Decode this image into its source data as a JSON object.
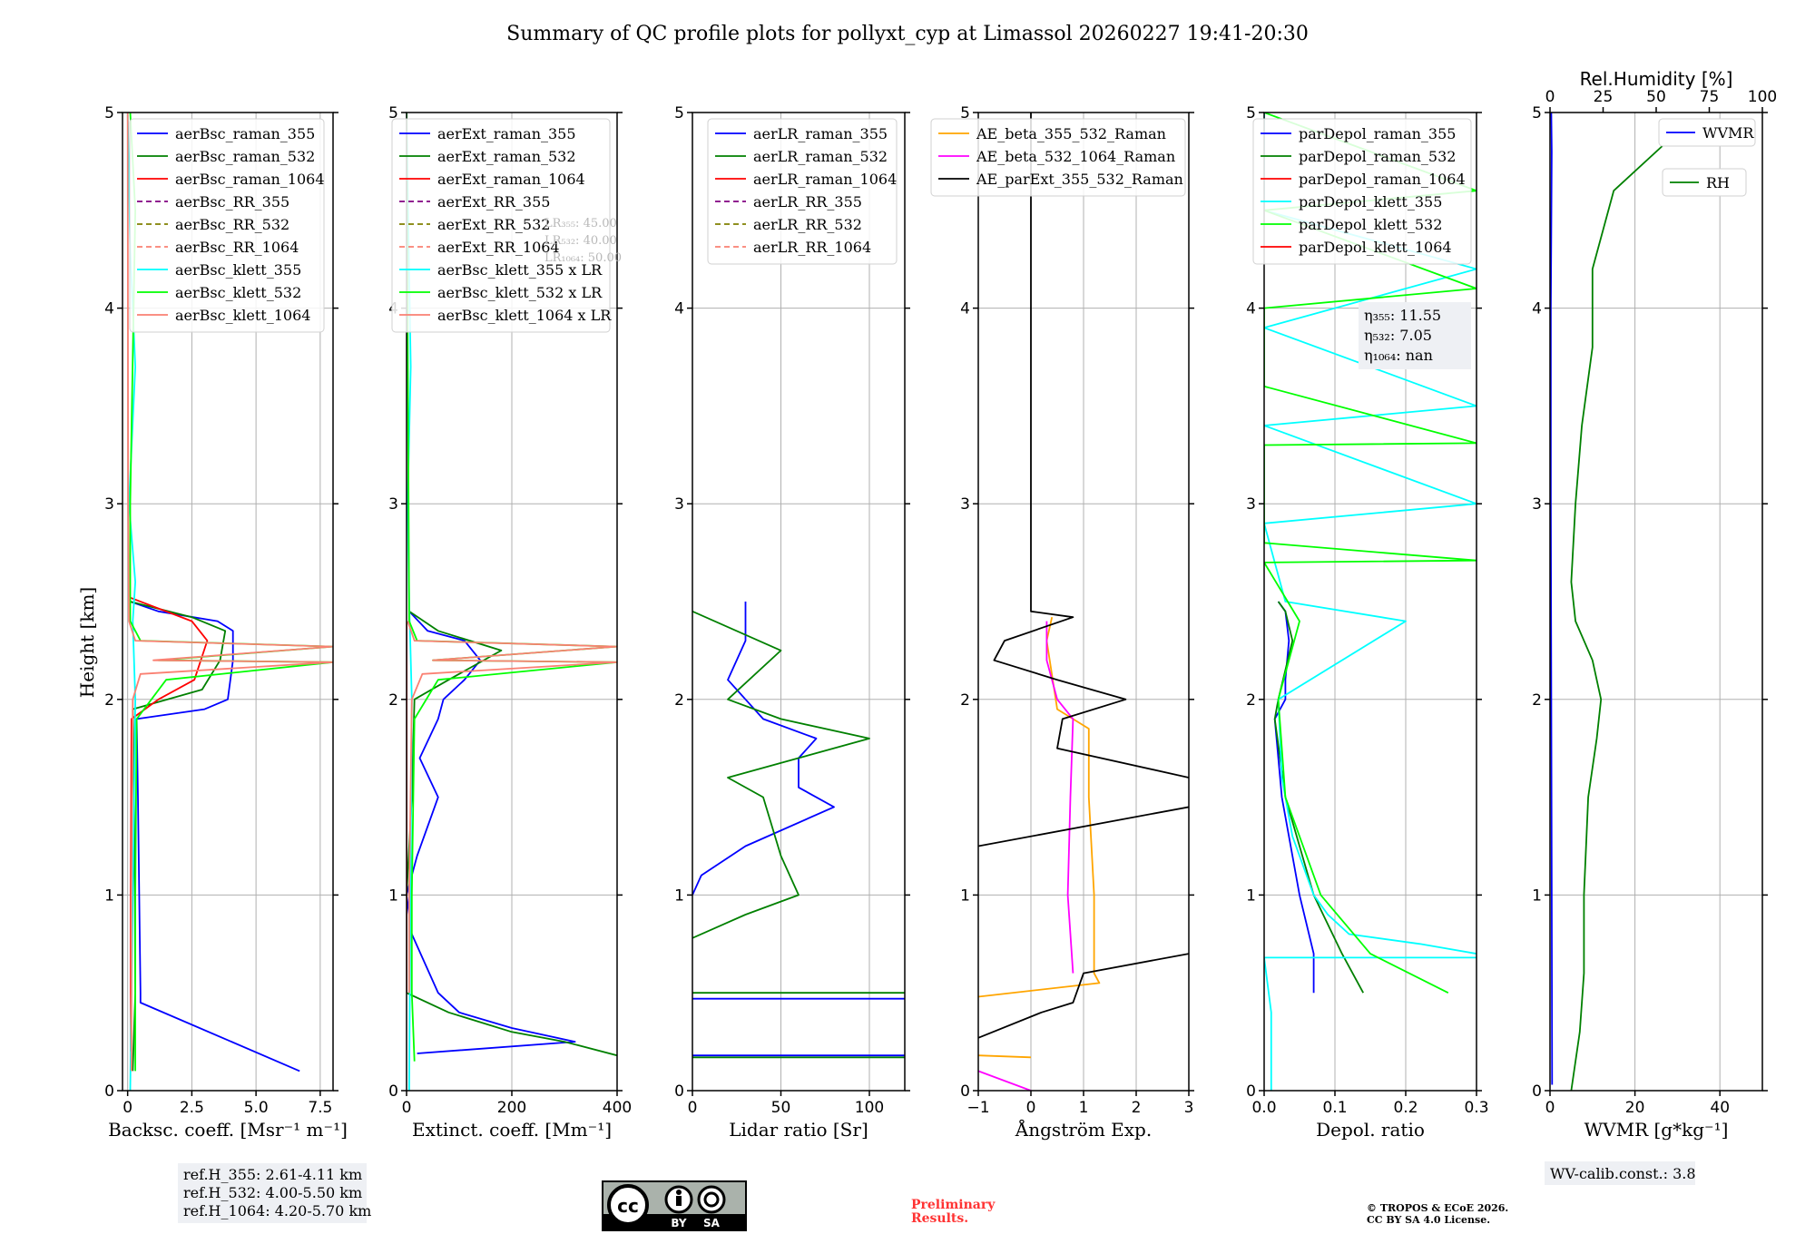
{
  "title": "Summary of QC profile plots for pollyxt_cyp at Limassol 20260227 19:41-20:30",
  "ylabel": "Height [km]",
  "ylim": [
    0,
    5
  ],
  "yticks": [
    0,
    1,
    2,
    3,
    4,
    5
  ],
  "chart_data": [
    {
      "type": "line",
      "id": "bsc",
      "xlabel": "Backsc. coeff. [Msr⁻¹ m⁻¹]",
      "xlim": [
        -0.2,
        8.0
      ],
      "xticks": [
        0,
        2.5,
        5.0,
        7.5
      ],
      "xticklabels": [
        "0",
        "2.5",
        "5.0",
        "7.5"
      ],
      "legend": [
        "aerBsc_raman_355",
        "aerBsc_raman_532",
        "aerBsc_raman_1064",
        "aerBsc_RR_355",
        "aerBsc_RR_532",
        "aerBsc_RR_1064",
        "aerBsc_klett_355",
        "aerBsc_klett_532",
        "aerBsc_klett_1064"
      ],
      "series": [
        {
          "name": "aerBsc_raman_355",
          "color": "#0000ff",
          "h": [
            0.1,
            0.45,
            0.5,
            1.0,
            1.5,
            1.9,
            1.95,
            2.0,
            2.2,
            2.35,
            2.4,
            2.45,
            2.5
          ],
          "v": [
            6.7,
            0.5,
            0.5,
            0.45,
            0.4,
            0.35,
            3.0,
            3.9,
            4.1,
            4.1,
            3.5,
            1.2,
            0.1
          ]
        },
        {
          "name": "aerBsc_raman_532",
          "color": "#008000",
          "h": [
            0.1,
            0.5,
            1.0,
            1.5,
            1.95,
            2.05,
            2.2,
            2.35,
            2.42,
            2.5
          ],
          "v": [
            0.2,
            0.3,
            0.28,
            0.25,
            0.2,
            2.9,
            3.6,
            3.8,
            2.5,
            0.1
          ]
        },
        {
          "name": "aerBsc_raman_1064",
          "color": "#ff0000",
          "h": [
            0.2,
            1.0,
            1.9,
            2.0,
            2.1,
            2.3,
            2.4,
            2.52
          ],
          "v": [
            0.12,
            0.12,
            0.15,
            1.2,
            2.6,
            3.1,
            2.5,
            0.1
          ]
        },
        {
          "name": "aerBsc_klett_355",
          "color": "#00ffff",
          "h": [
            0.0,
            1.0,
            2.0,
            2.4,
            2.6,
            3.0,
            3.7,
            4.3,
            5.0
          ],
          "v": [
            0.1,
            0.2,
            0.3,
            0.2,
            0.3,
            0.05,
            0.3,
            0.1,
            0.0
          ]
        },
        {
          "name": "aerBsc_klett_532",
          "color": "#00ff00",
          "h": [
            0.1,
            1.0,
            1.9,
            2.1,
            2.19,
            2.2,
            2.27,
            2.3,
            2.4,
            3.0,
            4.5,
            5.0
          ],
          "v": [
            0.3,
            0.3,
            0.35,
            1.5,
            8.0,
            1.2,
            8.0,
            0.5,
            0.1,
            0.1,
            0.3,
            0.1
          ]
        },
        {
          "name": "aerBsc_klett_1064",
          "color": "#fa8072",
          "h": [
            0.1,
            1.0,
            2.0,
            2.13,
            2.19,
            2.2,
            2.27,
            2.3,
            2.4,
            3.0,
            5.0
          ],
          "v": [
            0.15,
            0.15,
            0.2,
            0.5,
            8.0,
            1.0,
            8.0,
            0.3,
            0.05,
            0.02,
            0.0
          ]
        }
      ]
    },
    {
      "type": "line",
      "id": "ext",
      "xlabel": "Extinct. coeff. [Mm⁻¹]",
      "xlim": [
        0,
        400
      ],
      "xticks": [
        0,
        200,
        400
      ],
      "xticklabels": [
        "0",
        "200",
        "400"
      ],
      "legend": [
        "aerExt_raman_355",
        "aerExt_raman_532",
        "aerExt_raman_1064",
        "aerExt_RR_355",
        "aerExt_RR_532",
        "aerExt_RR_1064",
        "aerBsc_klett_355 x LR",
        "aerBsc_klett_532 x LR",
        "aerBsc_klett_1064 x LR"
      ],
      "lr_labels": [
        "LR₃₅₅: 45.00",
        "LR₅₃₂: 40.00",
        "LR₁₀₆₄: 50.00"
      ],
      "series": [
        {
          "name": "aerExt_raman_355",
          "color": "#0000ff",
          "h": [
            0.19,
            0.25,
            0.32,
            0.4,
            0.5,
            0.8,
            1.0,
            1.2,
            1.5,
            1.7,
            1.9,
            2.0,
            2.1,
            2.2,
            2.3,
            2.35,
            2.45
          ],
          "v": [
            20,
            320,
            200,
            100,
            60,
            10,
            0,
            20,
            60,
            25,
            60,
            70,
            110,
            140,
            110,
            40,
            5
          ]
        },
        {
          "name": "aerExt_raman_532",
          "color": "#008000",
          "h": [
            0.18,
            0.25,
            0.3,
            0.4,
            0.5,
            1.0,
            1.5,
            2.0,
            2.1,
            2.25,
            2.35,
            2.45
          ],
          "v": [
            400,
            300,
            200,
            80,
            0,
            0,
            10,
            15,
            80,
            180,
            60,
            5
          ]
        },
        {
          "name": "aerExt_raman_1064",
          "color": "#ff0000",
          "h": [
            0.5,
            1.0,
            2.0,
            2.4
          ],
          "v": [
            0,
            0,
            0,
            0
          ]
        },
        {
          "name": "aerBsc_klett_355 x LR",
          "color": "#00ffff",
          "h": [
            0.0,
            2.0,
            2.5,
            3.0,
            3.7,
            4.5,
            5.0
          ],
          "v": [
            5,
            10,
            5,
            2,
            8,
            3,
            0
          ]
        },
        {
          "name": "aerBsc_klett_532 x LR",
          "color": "#00ff00",
          "h": [
            0.15,
            0.5,
            1.0,
            1.9,
            2.1,
            2.19,
            2.2,
            2.27,
            2.3,
            2.4,
            5.0
          ],
          "v": [
            15,
            10,
            10,
            15,
            60,
            400,
            50,
            400,
            20,
            5,
            0
          ]
        },
        {
          "name": "aerBsc_klett_1064 x LR",
          "color": "#fa8072",
          "h": [
            0.5,
            1.0,
            2.0,
            2.13,
            2.19,
            2.2,
            2.27,
            2.3,
            2.4
          ],
          "v": [
            5,
            5,
            10,
            30,
            400,
            50,
            400,
            15,
            2
          ]
        }
      ]
    },
    {
      "type": "line",
      "id": "lr",
      "xlabel": "Lidar ratio [Sr]",
      "xlim": [
        0,
        120
      ],
      "xticks": [
        0,
        50,
        100
      ],
      "xticklabels": [
        "0",
        "50",
        "100"
      ],
      "legend": [
        "aerLR_raman_355",
        "aerLR_raman_532",
        "aerLR_raman_1064",
        "aerLR_RR_355",
        "aerLR_RR_532",
        "aerLR_RR_1064"
      ],
      "series": [
        {
          "name": "aerLR_raman_355",
          "color": "#0000ff",
          "h": [
            0.18,
            0.18,
            null,
            0.47,
            0.47,
            null,
            1.0,
            1.1,
            1.25,
            1.45,
            1.55,
            1.7,
            1.8,
            1.9,
            2.0,
            2.1,
            2.3,
            2.5
          ],
          "v": [
            0,
            120,
            null,
            0,
            120,
            null,
            0,
            5,
            30,
            80,
            60,
            60,
            70,
            40,
            30,
            20,
            30,
            30
          ]
        },
        {
          "name": "aerLR_raman_532",
          "color": "#008000",
          "h": [
            0.17,
            0.17,
            null,
            0.5,
            0.5,
            null,
            0.78,
            0.9,
            1.0,
            1.2,
            1.5,
            1.6,
            1.8,
            1.9,
            2.0,
            2.25,
            2.45
          ],
          "v": [
            0,
            120,
            null,
            0,
            120,
            null,
            0,
            30,
            60,
            50,
            40,
            20,
            100,
            50,
            20,
            50,
            0
          ]
        }
      ]
    },
    {
      "type": "line",
      "id": "ae",
      "xlabel": "Ångström Exp.",
      "xlim": [
        -1,
        3
      ],
      "xticks": [
        -1,
        0,
        1,
        2,
        3
      ],
      "xticklabels": [
        "−1",
        "0",
        "1",
        "2",
        "3"
      ],
      "legend": [
        "AE_beta_355_532_Raman",
        "AE_beta_532_1064_Raman",
        "AE_parExt_355_532_Raman"
      ],
      "series": [
        {
          "name": "AE_beta_355_532_Raman",
          "color": "#ffa500",
          "h": [
            0.48,
            0.55,
            0.6,
            1.0,
            1.5,
            1.85,
            1.95,
            2.3,
            2.42,
            null,
            0.17,
            0.18
          ],
          "v": [
            -1,
            1.3,
            1.2,
            1.2,
            1.1,
            1.1,
            0.5,
            0.3,
            0.4,
            null,
            0,
            -1
          ]
        },
        {
          "name": "AE_beta_532_1064_Raman",
          "color": "#ff00ff",
          "h": [
            0.0,
            0.1,
            null,
            0.6,
            1.0,
            1.5,
            1.9,
            2.0,
            2.2,
            2.4
          ],
          "v": [
            0,
            -1,
            null,
            0.8,
            0.7,
            0.75,
            0.8,
            0.5,
            0.3,
            0.3
          ],
          "break": true
        },
        {
          "name": "AE_parExt_355_532_Raman",
          "color": "#000000",
          "h": [
            0.27,
            0.4,
            0.45,
            0.6,
            0.7,
            null,
            1.25,
            1.45,
            null,
            1.6,
            1.75,
            1.9,
            2.0,
            2.1,
            2.2,
            2.3,
            2.42,
            2.45,
            5.0
          ],
          "v": [
            -1,
            0.2,
            0.8,
            1.0,
            3,
            null,
            -1,
            3,
            null,
            3,
            0.5,
            0.6,
            1.8,
            0.5,
            -0.7,
            -0.5,
            0.8,
            0,
            0
          ]
        }
      ]
    },
    {
      "type": "line",
      "id": "depol",
      "xlabel": "Depol. ratio",
      "xlim": [
        0,
        0.3
      ],
      "xticks": [
        0,
        0.1,
        0.2,
        0.3
      ],
      "xticklabels": [
        "0.0",
        "0.1",
        "0.2",
        "0.3"
      ],
      "legend": [
        "parDepol_raman_355",
        "parDepol_raman_532",
        "parDepol_raman_1064",
        "parDepol_klett_355",
        "parDepol_klett_532",
        "parDepol_klett_1064"
      ],
      "eta_labels": [
        "η₃₅₅: 11.55",
        "η₅₃₂: 7.05",
        "η₁₀₆₄: nan"
      ],
      "series": [
        {
          "name": "parDepol_raman_355",
          "color": "#0000ff",
          "h": [
            0.5,
            0.7,
            1.0,
            1.5,
            1.9,
            2.0,
            2.1,
            2.3,
            2.45,
            2.5
          ],
          "v": [
            0.07,
            0.07,
            0.05,
            0.025,
            0.015,
            0.03,
            0.03,
            0.035,
            0.03,
            0.02
          ]
        },
        {
          "name": "parDepol_raman_532",
          "color": "#008000",
          "h": [
            0.5,
            0.7,
            1.0,
            1.5,
            1.9,
            2.0,
            2.3,
            2.45,
            2.5
          ],
          "v": [
            0.14,
            0.11,
            0.07,
            0.03,
            0.015,
            0.02,
            0.04,
            0.03,
            0.02
          ]
        },
        {
          "name": "parDepol_klett_355",
          "color": "#00ffff",
          "h": [
            0.0,
            0.4,
            0.68,
            0.68,
            null,
            0.7,
            0.75,
            0.8,
            0.9,
            1.0,
            1.3,
            1.6,
            2.0,
            2.4,
            2.5,
            2.9,
            3.0,
            3.4,
            3.5,
            3.9,
            4.2,
            4.5,
            5.0
          ],
          "v": [
            0.01,
            0.01,
            0.0,
            0.3,
            null,
            0.3,
            0.22,
            0.12,
            0.09,
            0.07,
            0.04,
            0.025,
            0.02,
            0.2,
            0.03,
            0.0,
            0.3,
            0.0,
            0.3,
            0.0,
            0.3,
            0.0,
            0.0
          ]
        },
        {
          "name": "parDepol_klett_532",
          "color": "#00ff00",
          "h": [
            0.5,
            0.7,
            1.0,
            1.5,
            2.0,
            2.4,
            2.7,
            2.71,
            2.8,
            3.0,
            3.3,
            3.31,
            3.6,
            4.0,
            4.1,
            4.5,
            4.6,
            5.0
          ],
          "v": [
            0.26,
            0.15,
            0.08,
            0.03,
            0.02,
            0.05,
            0.0,
            0.3,
            0.0,
            0.0,
            0.0,
            0.3,
            0.0,
            0.0,
            0.3,
            0.0,
            0.3,
            0.0
          ]
        }
      ]
    },
    {
      "type": "line",
      "id": "wv",
      "xlabel": "WVMR [g*kg⁻¹]",
      "xlim": [
        0,
        50
      ],
      "xticks": [
        0,
        20,
        40
      ],
      "xticklabels": [
        "0",
        "20",
        "40"
      ],
      "top_label": "Rel.Humidity [%]",
      "top_xlim": [
        0,
        100
      ],
      "top_xticks": [
        0,
        25,
        50,
        75,
        100
      ],
      "top_xticklabels": [
        "0",
        "25",
        "50",
        "75",
        "100"
      ],
      "legend": [
        "WVMR",
        "RH"
      ],
      "series": [
        {
          "name": "WVMR",
          "color": "#0000ff",
          "h": [
            0.03,
            1.0,
            2.0,
            3.0,
            4.0,
            4.8,
            5.0
          ],
          "v": [
            0.5,
            0.4,
            0.3,
            0.2,
            0.2,
            0.4,
            0.3
          ]
        },
        {
          "name": "RH",
          "color": "#008000",
          "axis": "top",
          "h": [
            0.0,
            0.3,
            0.6,
            1.0,
            1.5,
            1.8,
            2.0,
            2.2,
            2.4,
            2.6,
            3.0,
            3.4,
            3.8,
            4.2,
            4.6,
            4.9
          ],
          "v": [
            10,
            14,
            16,
            16,
            18,
            22,
            24,
            20,
            12,
            10,
            12,
            15,
            20,
            20,
            30,
            60
          ]
        }
      ]
    }
  ],
  "ref_box": [
    "ref.H_355: 2.61-4.11 km",
    "ref.H_532: 4.00-5.50 km",
    "ref.H_1064: 4.20-5.70 km"
  ],
  "wv_calib": "WV-calib.const.: 3.8",
  "license_badge": {
    "by": "BY",
    "sa": "SA",
    "cc": "cc"
  },
  "preliminary": [
    "Preliminary",
    "Results."
  ],
  "copyright": [
    "© TROPOS & ECoE 2026.",
    "CC BY SA 4.0 License."
  ],
  "colors": {
    "text": "#000000",
    "grid": "#b0b0b0",
    "box_bg": "#eef0f4",
    "preliminary": "#ff3333"
  }
}
